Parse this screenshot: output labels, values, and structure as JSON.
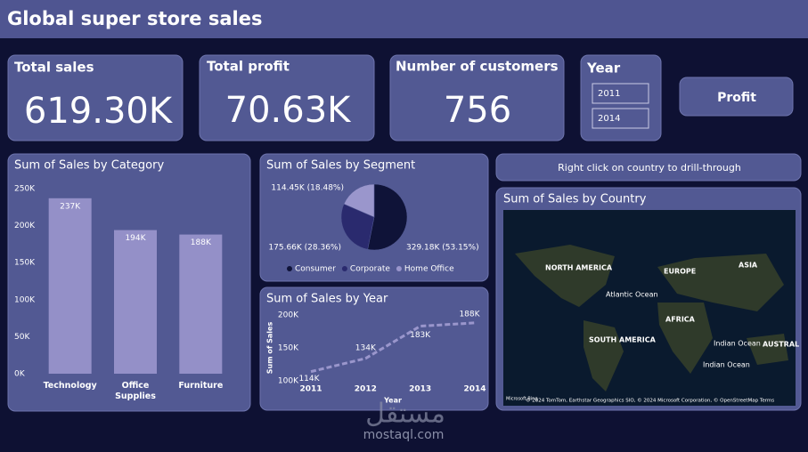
{
  "header": {
    "title": "Global super store sales"
  },
  "cards": [
    {
      "label": "Total sales",
      "value": "619.30K"
    },
    {
      "label": "Total profit",
      "value": "70.63K"
    },
    {
      "label": "Number of customers",
      "value": "756"
    }
  ],
  "slicer": {
    "label": "Year",
    "from": "2011",
    "to": "2014"
  },
  "button": {
    "label": "Profit"
  },
  "hint": "Right click on country to drill-through",
  "map": {
    "title": "Sum of Sales by Country",
    "labels": [
      "NORTH AMERICA",
      "EUROPE",
      "ASIA",
      "AFRICA",
      "SOUTH AMERICA",
      "Atlantic Ocean",
      "Indian Ocean",
      "Indian Ocean",
      "AUSTRAL"
    ],
    "attribution": "© 2024 TomTom, Earthstar Geographics SIO, © 2024 Microsoft Corporation, © OpenStreetMap  Terms",
    "brand": "Microsoft Bing"
  },
  "watermark": {
    "arabic": "مستقل",
    "site": "mostaql.com"
  },
  "chart_data": [
    {
      "type": "bar",
      "title": "Sum of Sales by Category",
      "categories": [
        "Technology",
        "Office Supplies",
        "Furniture"
      ],
      "values": [
        237000,
        194000,
        188000
      ],
      "value_labels": [
        "237K",
        "194K",
        "188K"
      ],
      "color": "#9490c8",
      "ylim": [
        0,
        250000
      ],
      "yticks": [
        {
          "value": 0,
          "label": "0K"
        },
        {
          "value": 50000,
          "label": "50K"
        },
        {
          "value": 100000,
          "label": "100K"
        },
        {
          "value": 150000,
          "label": "150K"
        },
        {
          "value": 200000,
          "label": "200K"
        },
        {
          "value": 250000,
          "label": "250K"
        }
      ]
    },
    {
      "type": "pie",
      "title": "Sum of Sales by Segment",
      "categories": [
        "Consumer",
        "Corporate",
        "Home Office"
      ],
      "values": [
        329180,
        175660,
        114450
      ],
      "value_labels": [
        "329.18K (53.15%)",
        "175.66K (28.36%)",
        "114.45K (18.48%)"
      ],
      "colors": [
        "#0f1338",
        "#2a2a6e",
        "#9a96cc"
      ]
    },
    {
      "type": "line",
      "title": "Sum of Sales by Year",
      "xlabel": "Year",
      "ylabel": "Sum of Sales",
      "x": [
        2011,
        2012,
        2013,
        2014
      ],
      "values": [
        114000,
        134000,
        183000,
        188000
      ],
      "value_labels": [
        "114K",
        "134K",
        "183K",
        "188K"
      ],
      "color": "#9a96cc",
      "xlim": [
        2011,
        2014
      ],
      "xticks": [
        2011,
        2012,
        2013,
        2014
      ],
      "ylim": [
        100000,
        200000
      ],
      "yticks": [
        {
          "value": 100000,
          "label": "100K"
        },
        {
          "value": 150000,
          "label": "150K"
        },
        {
          "value": 200000,
          "label": "200K"
        }
      ]
    }
  ]
}
